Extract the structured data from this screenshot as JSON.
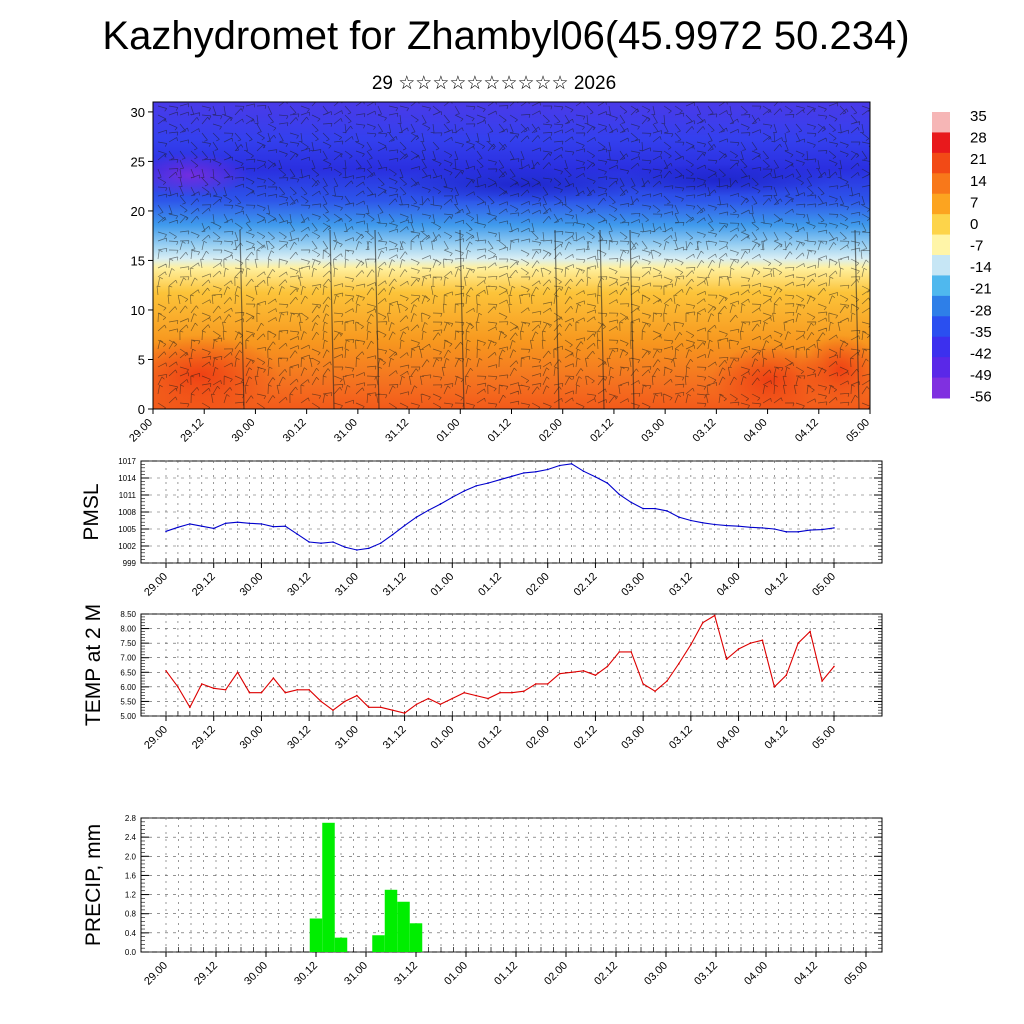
{
  "header": {
    "title": "Kazhydromet for Zhambyl06(45.9972 50.234)",
    "subtitle": "29 ☆☆☆☆☆☆☆☆☆☆ 2026"
  },
  "time_labels": [
    "29.00",
    "29.12",
    "30.00",
    "30.12",
    "31.00",
    "31.12",
    "01.00",
    "01.12",
    "02.00",
    "02.12",
    "03.00",
    "03.12",
    "04.00",
    "04.12",
    "05.00"
  ],
  "chart_data": [
    {
      "type": "heatmap",
      "name": "vertical cross-section",
      "ylim": [
        0,
        31
      ],
      "yticks": [
        "0",
        "5",
        "10",
        "15",
        "20",
        "25",
        "30"
      ],
      "colorbar": {
        "labels": [
          "35",
          "28",
          "21",
          "14",
          "7",
          "0",
          "-7",
          "-14",
          "-21",
          "-28",
          "-35",
          "-42",
          "-49",
          "-56"
        ],
        "colors": [
          "#f6b6b6",
          "#e8191c",
          "#f24a16",
          "#f8781a",
          "#fca420",
          "#fdd44a",
          "#fff5a8",
          "#c6e6f5",
          "#4fb8ee",
          "#2e7fe8",
          "#2a4ff0",
          "#3c30ee",
          "#5a28e8",
          "#8030e0"
        ]
      }
    },
    {
      "type": "line",
      "ylabel": "PMSL",
      "ylim": [
        999,
        1017
      ],
      "yticks": [
        "999",
        "1002",
        "1005",
        "1008",
        "1011",
        "1014",
        "1017"
      ],
      "color": "#0000cc",
      "values": [
        1004.6,
        1005.3,
        1005.9,
        1005.5,
        1005.1,
        1006,
        1006.2,
        1006,
        1005.9,
        1005.4,
        1005.5,
        1004.1,
        1002.7,
        1002.5,
        1002.7,
        1001.8,
        1001.3,
        1001.6,
        1002.5,
        1004,
        1005.6,
        1007.1,
        1008.3,
        1009.4,
        1010.6,
        1011.7,
        1012.6,
        1013.1,
        1013.7,
        1014.3,
        1014.9,
        1015.1,
        1015.5,
        1016.2,
        1016.5,
        1015.2,
        1014.2,
        1013.1,
        1011.1,
        1009.7,
        1008.6,
        1008.6,
        1008.2,
        1007.1,
        1006.5,
        1006.1,
        1005.8,
        1005.6,
        1005.5,
        1005.3,
        1005.2,
        1005,
        1004.5,
        1004.5,
        1004.8,
        1004.9,
        1005.2
      ]
    },
    {
      "type": "line",
      "ylabel": "TEMP at 2 M",
      "ylim": [
        5.0,
        8.5
      ],
      "yticks": [
        "5.00",
        "5.50",
        "6.00",
        "6.50",
        "7.00",
        "7.50",
        "8.00",
        "8.50"
      ],
      "color": "#dd0000",
      "values": [
        6.55,
        6.0,
        5.3,
        6.1,
        5.95,
        5.9,
        6.5,
        5.8,
        5.8,
        6.3,
        5.8,
        5.9,
        5.9,
        5.5,
        5.2,
        5.5,
        5.7,
        5.3,
        5.3,
        5.2,
        5.1,
        5.4,
        5.6,
        5.4,
        5.6,
        5.8,
        5.7,
        5.6,
        5.8,
        5.8,
        5.85,
        6.1,
        6.1,
        6.45,
        6.5,
        6.55,
        6.4,
        6.7,
        7.2,
        7.2,
        6.1,
        5.85,
        6.2,
        6.8,
        7.45,
        8.2,
        8.45,
        6.95,
        7.3,
        7.5,
        7.6,
        6.0,
        6.4,
        7.5,
        7.9,
        6.2,
        6.7
      ]
    },
    {
      "type": "bar",
      "ylabel": "PRECIP, mm",
      "ylim": [
        0,
        2.8
      ],
      "yticks": [
        "0.0",
        "0.4",
        "0.8",
        "1.2",
        "1.6",
        "2.0",
        "2.4",
        "2.8"
      ],
      "color": "#00ee00",
      "values": [
        0,
        0,
        0,
        0,
        0,
        0,
        0,
        0,
        0,
        0,
        0,
        0,
        0.7,
        2.7,
        0.3,
        0,
        0,
        0.35,
        1.3,
        1.05,
        0.6,
        0,
        0,
        0,
        0,
        0,
        0,
        0,
        0,
        0,
        0,
        0,
        0,
        0,
        0,
        0,
        0,
        0,
        0,
        0,
        0,
        0,
        0,
        0,
        0,
        0,
        0,
        0,
        0,
        0,
        0,
        0,
        0,
        0,
        0,
        0,
        0
      ]
    }
  ]
}
